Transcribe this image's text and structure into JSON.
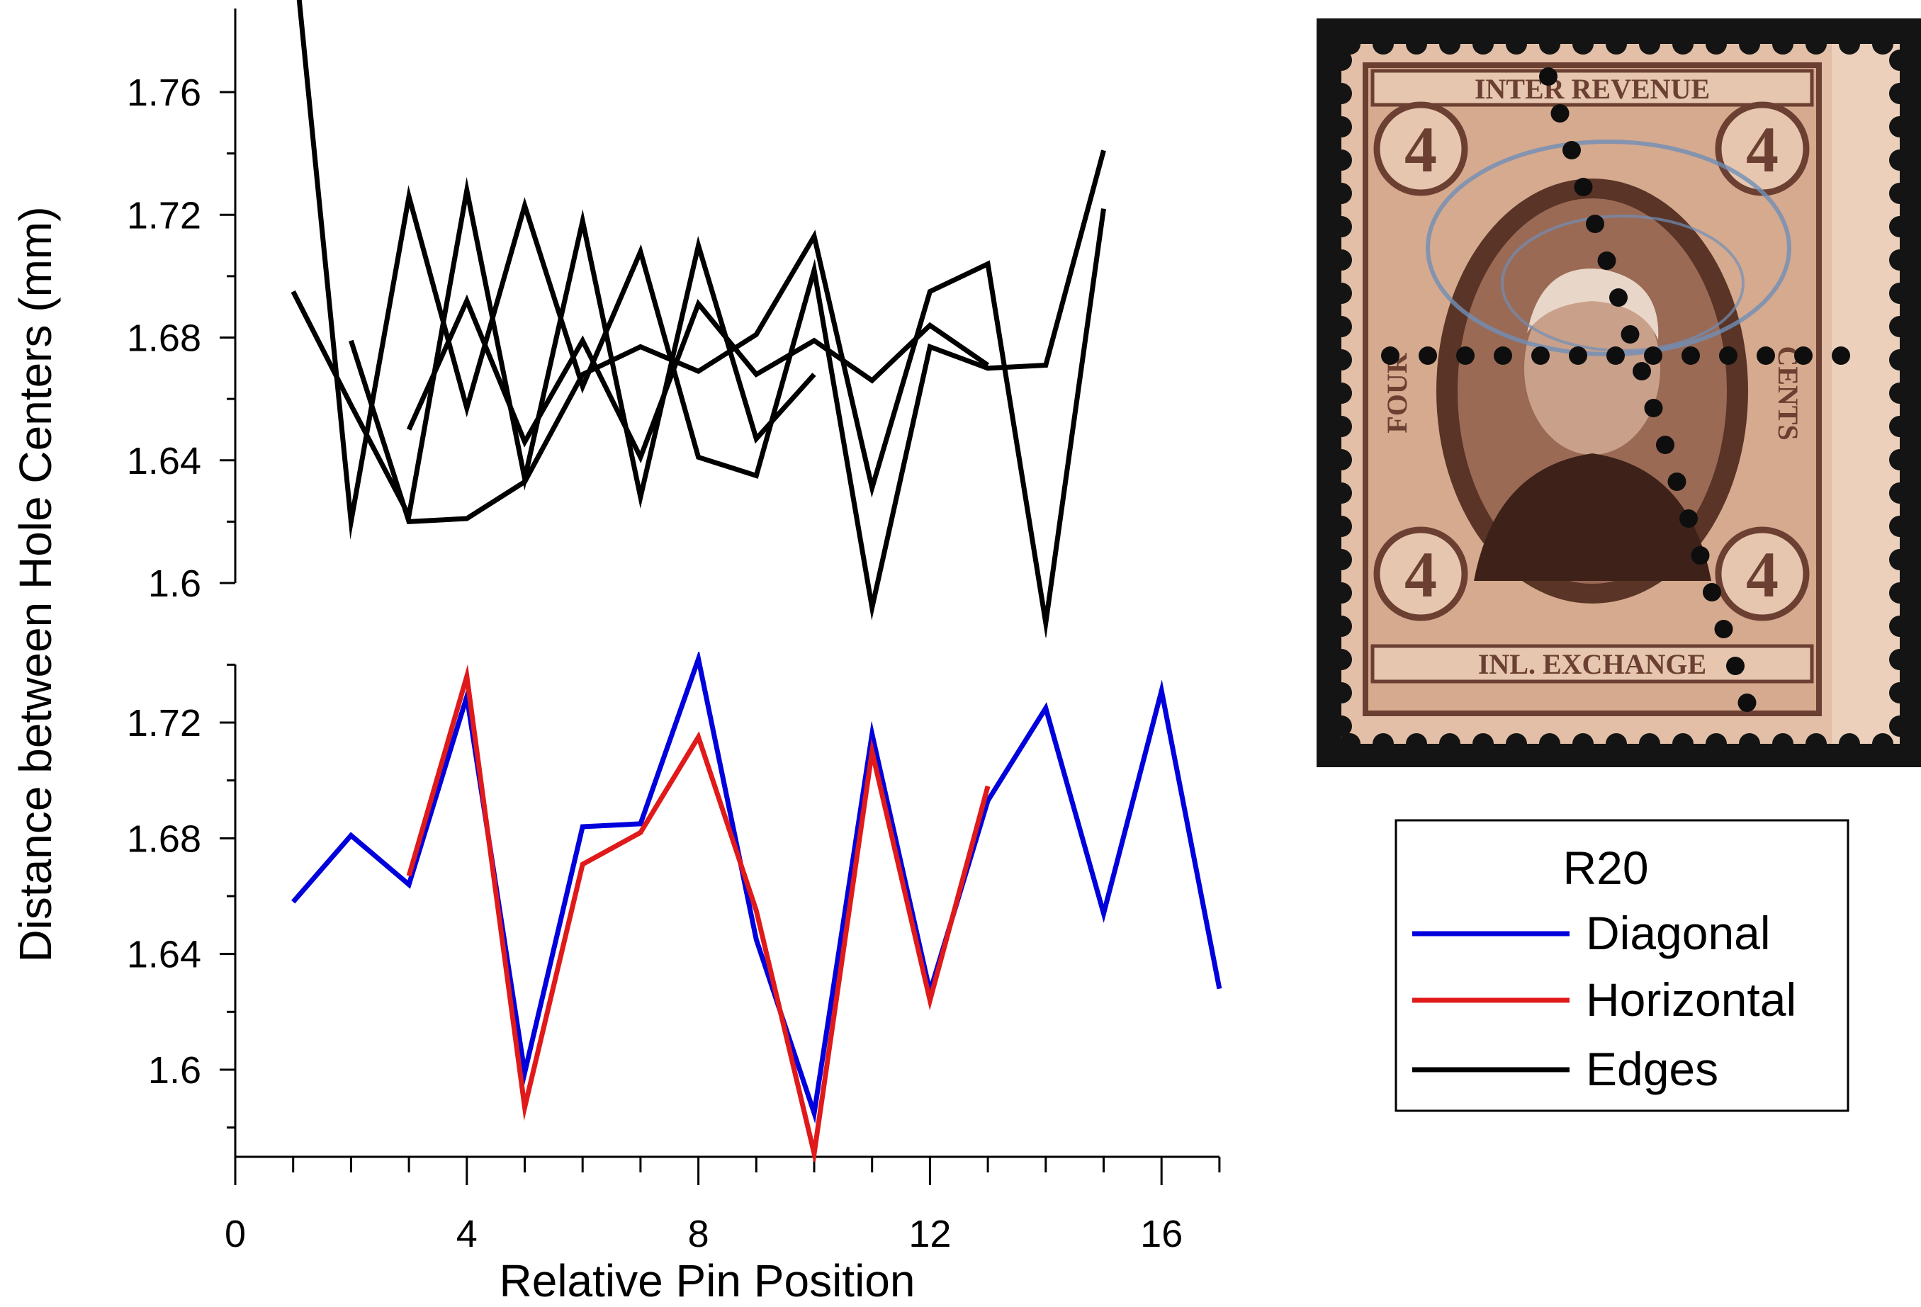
{
  "chart_data": [
    {
      "type": "line",
      "panel": "top",
      "xlabel": "Relative Pin Position",
      "ylabel": "Distance between Hole Centers (mm)",
      "xlim": [
        0,
        17
      ],
      "ylim": [
        1.6,
        1.78
      ],
      "yticks": [
        1.6,
        1.64,
        1.68,
        1.72,
        1.76
      ],
      "ytick_labels": [
        "1.6",
        "1.64",
        "1.68",
        "1.72",
        "1.76"
      ],
      "grid": false,
      "series": [
        {
          "group": "Edges",
          "color": "#000000",
          "points": [
            [
              1,
              1.81
            ],
            [
              2,
              1.62
            ],
            [
              3,
              1.726
            ],
            [
              4,
              1.657
            ],
            [
              5,
              1.723
            ],
            [
              6,
              1.664
            ],
            [
              7,
              1.708
            ],
            [
              8,
              1.641
            ],
            [
              9,
              1.635
            ],
            [
              10,
              1.702
            ],
            [
              11,
              1.592
            ],
            [
              12,
              1.677
            ],
            [
              13,
              1.67
            ],
            [
              14,
              1.671
            ],
            [
              15,
              1.741
            ]
          ]
        },
        {
          "group": "Edges",
          "color": "#000000",
          "points": [
            [
              1,
              1.695
            ],
            [
              2,
              1.658
            ],
            [
              3,
              1.622
            ],
            [
              4,
              1.728
            ],
            [
              5,
              1.634
            ],
            [
              6,
              1.718
            ],
            [
              7,
              1.628
            ],
            [
              8,
              1.71
            ],
            [
              9,
              1.647
            ],
            [
              10,
              1.668
            ]
          ]
        },
        {
          "group": "Edges",
          "color": "#000000",
          "points": [
            [
              2,
              1.679
            ],
            [
              3,
              1.62
            ],
            [
              4,
              1.621
            ],
            [
              5,
              1.633
            ],
            [
              6,
              1.668
            ],
            [
              7,
              1.677
            ],
            [
              8,
              1.669
            ],
            [
              9,
              1.681
            ],
            [
              10,
              1.713
            ],
            [
              11,
              1.631
            ],
            [
              12,
              1.695
            ],
            [
              13,
              1.704
            ],
            [
              14,
              1.587
            ],
            [
              15,
              1.722
            ]
          ]
        },
        {
          "group": "Edges",
          "color": "#000000",
          "points": [
            [
              3,
              1.65
            ],
            [
              4,
              1.692
            ],
            [
              5,
              1.646
            ],
            [
              6,
              1.679
            ],
            [
              7,
              1.641
            ],
            [
              8,
              1.691
            ],
            [
              9,
              1.668
            ],
            [
              10,
              1.679
            ],
            [
              11,
              1.666
            ],
            [
              12,
              1.684
            ],
            [
              13,
              1.671
            ]
          ]
        }
      ]
    },
    {
      "type": "line",
      "panel": "bottom",
      "xlabel": "Relative Pin Position",
      "ylabel": "Distance between Hole Centers (mm)",
      "xlim": [
        0,
        17
      ],
      "ylim": [
        1.57,
        1.74
      ],
      "xticks": [
        0,
        4,
        8,
        12,
        16
      ],
      "xtick_labels": [
        "0",
        "4",
        "8",
        "12",
        "16"
      ],
      "yticks": [
        1.6,
        1.64,
        1.68,
        1.72
      ],
      "ytick_labels": [
        "1.6",
        "1.64",
        "1.68",
        "1.72"
      ],
      "grid": false,
      "series": [
        {
          "name": "Diagonal",
          "color": "#0000dd",
          "points": [
            [
              1,
              1.658
            ],
            [
              2,
              1.681
            ],
            [
              3,
              1.664
            ],
            [
              4,
              1.729
            ],
            [
              5,
              1.599
            ],
            [
              6,
              1.684
            ],
            [
              7,
              1.685
            ],
            [
              8,
              1.742
            ],
            [
              9,
              1.645
            ],
            [
              10,
              1.585
            ],
            [
              11,
              1.716
            ],
            [
              12,
              1.627
            ],
            [
              13,
              1.693
            ],
            [
              14,
              1.725
            ],
            [
              15,
              1.654
            ],
            [
              16,
              1.731
            ],
            [
              17,
              1.628
            ]
          ]
        },
        {
          "name": "Horizontal",
          "color": "#e01a1a",
          "points": [
            [
              3,
              1.667
            ],
            [
              4,
              1.736
            ],
            [
              5,
              1.587
            ],
            [
              6,
              1.671
            ],
            [
              7,
              1.682
            ],
            [
              8,
              1.715
            ],
            [
              9,
              1.655
            ],
            [
              10,
              1.571
            ],
            [
              11,
              1.71
            ],
            [
              12,
              1.624
            ],
            [
              13,
              1.698
            ]
          ]
        }
      ]
    }
  ],
  "legend": {
    "title": "R20",
    "placement": "right",
    "entries": [
      {
        "label": "Diagonal",
        "color": "#0000dd"
      },
      {
        "label": "Horizontal",
        "color": "#e01a1a"
      },
      {
        "label": "Edges",
        "color": "#000000"
      }
    ]
  },
  "stamp": {
    "top_text": "INTER REVENUE",
    "bottom_text": "INL. EXCHANGE",
    "left_text": "FOUR",
    "right_text": "CENTS",
    "denomination": "4",
    "colors": {
      "ink": "#6b4032",
      "paper": "#e2bfa6",
      "background": "#141414",
      "cancel": "#6f8fb8"
    }
  }
}
